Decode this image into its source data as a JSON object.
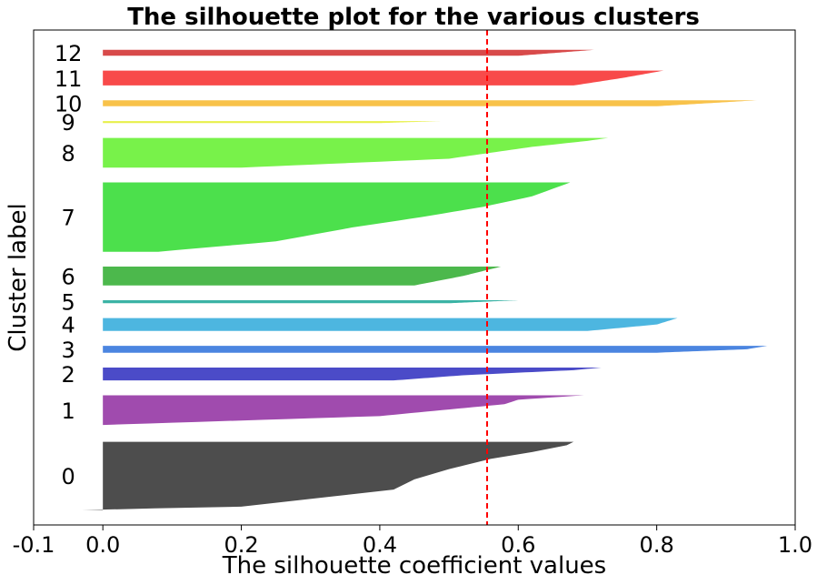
{
  "chart_data": {
    "type": "area",
    "title": "The silhouette plot for the various clusters",
    "xlabel": "The silhouette coefficient values",
    "ylabel": "Cluster label",
    "xlim": [
      -0.1,
      1.0
    ],
    "ylim": [
      0,
      100
    ],
    "xticks": [
      "-0.1",
      "0.0",
      "0.2",
      "0.4",
      "0.6",
      "0.8",
      "1.0"
    ],
    "xtick_values": [
      -0.1,
      0.0,
      0.2,
      0.4,
      0.6,
      0.8,
      1.0
    ],
    "grid": false,
    "avg_silhouette_score": 0.555,
    "avg_line_color": "#ff0000",
    "clusters": [
      {
        "label": "0",
        "color": "#4d4d4d",
        "y0": 3.0,
        "y1": 16.8,
        "min": -0.03,
        "shape": [
          [
            0,
            -0.03
          ],
          [
            0.01,
            0
          ],
          [
            0.05,
            0.2
          ],
          [
            0.3,
            0.42
          ],
          [
            0.45,
            0.45
          ],
          [
            0.6,
            0.5
          ],
          [
            0.75,
            0.56
          ],
          [
            0.85,
            0.62
          ],
          [
            0.95,
            0.67
          ],
          [
            1,
            0.68
          ]
        ]
      },
      {
        "label": "1",
        "color": "#a04bae",
        "y0": 20.2,
        "y1": 26.2,
        "min": 0.0,
        "shape": [
          [
            0,
            0
          ],
          [
            0.3,
            0.4
          ],
          [
            0.7,
            0.58
          ],
          [
            0.85,
            0.6
          ],
          [
            1,
            0.695
          ]
        ]
      },
      {
        "label": "2",
        "color": "#4b4bc8",
        "y0": 29.2,
        "y1": 31.8,
        "min": 0.0,
        "shape": [
          [
            0,
            0.42
          ],
          [
            0.4,
            0.52
          ],
          [
            0.8,
            0.68
          ],
          [
            1,
            0.72
          ]
        ]
      },
      {
        "label": "3",
        "color": "#4b85e0",
        "y0": 34.8,
        "y1": 36.2,
        "min": 0.0,
        "shape": [
          [
            0,
            0.8
          ],
          [
            0.5,
            0.93
          ],
          [
            1,
            0.96
          ]
        ]
      },
      {
        "label": "4",
        "color": "#4db6e0",
        "y0": 39.2,
        "y1": 41.8,
        "min": 0.0,
        "shape": [
          [
            0,
            0.7
          ],
          [
            0.5,
            0.8
          ],
          [
            1,
            0.83
          ]
        ]
      },
      {
        "label": "5",
        "color": "#3bb3a5",
        "y0": 44.8,
        "y1": 45.4,
        "min": 0.0,
        "shape": [
          [
            0,
            0.5
          ],
          [
            1,
            0.6
          ]
        ]
      },
      {
        "label": "6",
        "color": "#4cb84c",
        "y0": 48.4,
        "y1": 52.2,
        "min": 0.0,
        "shape": [
          [
            0,
            0.45
          ],
          [
            0.5,
            0.52
          ],
          [
            1,
            0.575
          ]
        ]
      },
      {
        "label": "7",
        "color": "#4ce04c",
        "y0": 55.2,
        "y1": 69.2,
        "min": 0.0,
        "shape": [
          [
            0,
            0.08
          ],
          [
            0.15,
            0.25
          ],
          [
            0.35,
            0.36
          ],
          [
            0.5,
            0.46
          ],
          [
            0.65,
            0.55
          ],
          [
            0.8,
            0.62
          ],
          [
            1,
            0.675
          ]
        ]
      },
      {
        "label": "8",
        "color": "#78f24a",
        "y0": 72.2,
        "y1": 78.2,
        "min": 0.0,
        "shape": [
          [
            0,
            0.2
          ],
          [
            0.3,
            0.5
          ],
          [
            0.7,
            0.62
          ],
          [
            0.9,
            0.7
          ],
          [
            1,
            0.73
          ]
        ]
      },
      {
        "label": "9",
        "color": "#e8f04a",
        "y0": 81.2,
        "y1": 81.6,
        "min": 0.0,
        "shape": [
          [
            0,
            0.4
          ],
          [
            1,
            0.49
          ]
        ]
      },
      {
        "label": "10",
        "color": "#f8c24a",
        "y0": 84.6,
        "y1": 85.8,
        "min": 0.0,
        "shape": [
          [
            0,
            0.8
          ],
          [
            1,
            0.945
          ]
        ]
      },
      {
        "label": "11",
        "color": "#f84a4a",
        "y0": 88.8,
        "y1": 91.8,
        "min": 0.0,
        "shape": [
          [
            0,
            0.68
          ],
          [
            0.5,
            0.75
          ],
          [
            1,
            0.81
          ]
        ]
      },
      {
        "label": "12",
        "color": "#d84a4a",
        "y0": 94.8,
        "y1": 96.0,
        "min": 0.0,
        "shape": [
          [
            0,
            0.6
          ],
          [
            1,
            0.71
          ]
        ]
      }
    ]
  }
}
